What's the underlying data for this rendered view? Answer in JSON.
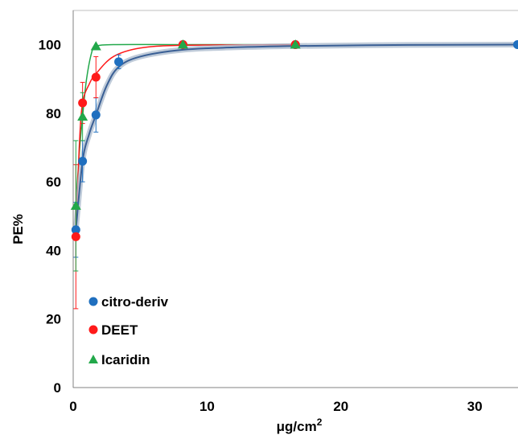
{
  "chart_data": {
    "type": "scatter",
    "xlabel": "μg/cm",
    "xlabel_sup": "2",
    "ylabel": "PE%",
    "xlim": [
      0,
      33
    ],
    "ylim": [
      0,
      110
    ],
    "xticks": [
      0,
      10,
      20,
      30
    ],
    "yticks": [
      0,
      20,
      40,
      60,
      80,
      100
    ],
    "grid": false,
    "legend_position": "bottom-left",
    "series": [
      {
        "name": "citro-deriv",
        "color": "#1f6fbf",
        "marker": "circle",
        "points": [
          {
            "x": 0.2,
            "y": 46,
            "err": 8
          },
          {
            "x": 0.7,
            "y": 66,
            "err": 6
          },
          {
            "x": 1.7,
            "y": 79.5,
            "err": 5
          },
          {
            "x": 3.4,
            "y": 95,
            "err": 2
          },
          {
            "x": 8.2,
            "y": 100,
            "err": 0.5
          },
          {
            "x": 16.6,
            "y": 100,
            "err": 0.5
          },
          {
            "x": 33.2,
            "y": 100,
            "err": 0.5
          }
        ],
        "curve": [
          [
            0.2,
            46
          ],
          [
            0.7,
            66
          ],
          [
            1.2,
            74
          ],
          [
            1.7,
            79.5
          ],
          [
            2.5,
            88
          ],
          [
            3.4,
            93.5
          ],
          [
            5,
            96.5
          ],
          [
            8.2,
            98.5
          ],
          [
            12,
            99.2
          ],
          [
            16.6,
            99.6
          ],
          [
            25,
            99.9
          ],
          [
            33.2,
            100
          ]
        ]
      },
      {
        "name": "DEET",
        "color": "#ff1a1a",
        "marker": "circle",
        "points": [
          {
            "x": 0.2,
            "y": 44,
            "err": 21
          },
          {
            "x": 0.7,
            "y": 83,
            "err": 6
          },
          {
            "x": 1.7,
            "y": 90.5,
            "err": 6
          },
          {
            "x": 8.2,
            "y": 100,
            "err": 0.5
          },
          {
            "x": 16.6,
            "y": 100,
            "err": 0.5
          }
        ],
        "curve": [
          [
            0.2,
            44
          ],
          [
            0.45,
            70
          ],
          [
            0.7,
            83
          ],
          [
            1.2,
            88.5
          ],
          [
            1.7,
            91.5
          ],
          [
            3,
            96.5
          ],
          [
            5,
            99
          ],
          [
            8.2,
            99.8
          ],
          [
            16.6,
            100
          ]
        ]
      },
      {
        "name": "Icaridin",
        "color": "#22a84a",
        "marker": "triangle",
        "points": [
          {
            "x": 0.2,
            "y": 53,
            "err": 19
          },
          {
            "x": 0.7,
            "y": 79,
            "err": 7
          },
          {
            "x": 1.7,
            "y": 99.5,
            "err": 0.5
          },
          {
            "x": 8.2,
            "y": 100,
            "err": 0.5
          },
          {
            "x": 16.6,
            "y": 100,
            "err": 0.5
          }
        ],
        "curve": [
          [
            0.2,
            53
          ],
          [
            0.45,
            68
          ],
          [
            0.7,
            79
          ],
          [
            1.0,
            90
          ],
          [
            1.4,
            98
          ],
          [
            1.7,
            99.5
          ],
          [
            3,
            100
          ],
          [
            8.2,
            100
          ],
          [
            16.6,
            100
          ]
        ]
      }
    ]
  }
}
